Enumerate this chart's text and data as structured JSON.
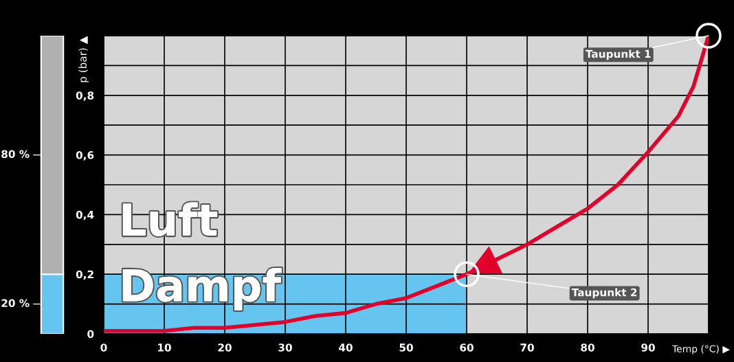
{
  "chart_data": [
    {
      "type": "line",
      "xlabel": "Temp (°C) ▶",
      "ylabel": "p (bar) ▲",
      "xlim": [
        0,
        100
      ],
      "ylim": [
        0,
        1.0
      ],
      "xticks": [
        0,
        10,
        20,
        30,
        40,
        50,
        60,
        70,
        80,
        90,
        {
          "value": 100,
          "label": null
        }
      ],
      "yticks": [
        0,
        {
          "value": 0.1,
          "label": null
        },
        {
          "value": 0.2,
          "label": "0,2"
        },
        {
          "value": 0.3,
          "label": null
        },
        {
          "value": 0.4,
          "label": "0,4"
        },
        {
          "value": 0.5,
          "label": null
        },
        {
          "value": 0.6,
          "label": "0,6"
        },
        {
          "value": 0.7,
          "label": null
        },
        {
          "value": 0.8,
          "label": "0,8"
        },
        {
          "value": 0.9,
          "label": null
        },
        {
          "value": 1.0,
          "label": null
        }
      ],
      "grid": true,
      "series": [
        {
          "type": "area",
          "color": "#66c5ee",
          "x": [
            0,
            60
          ],
          "values": [
            0.2,
            0.2
          ]
        },
        {
          "type": "line",
          "color": "#e0002a",
          "x": [
            0,
            5,
            10,
            15,
            20,
            25,
            30,
            35,
            40,
            45,
            50,
            55,
            60,
            65,
            70,
            75,
            80,
            85,
            90,
            95,
            97.5,
            100
          ],
          "values": [
            0.01,
            0.01,
            0.01,
            0.02,
            0.02,
            0.03,
            0.04,
            0.06,
            0.07,
            0.1,
            0.12,
            0.16,
            0.2,
            0.25,
            0.3,
            0.36,
            0.42,
            0.5,
            0.61,
            0.73,
            0.83,
            1.0
          ]
        },
        {
          "type": "scatter",
          "color": "#ffffff",
          "marker": "circle",
          "x": [
            60,
            100
          ],
          "values": [
            0.2,
            1.0
          ]
        }
      ],
      "annotations": [
        {
          "text": "Taupunkt 1",
          "x": 100,
          "y": 1.0
        },
        {
          "text": "Taupunkt 2",
          "x": 60,
          "y": 0.2
        },
        "Luft",
        "Dampf"
      ]
    },
    {
      "type": "bar",
      "stacked": true,
      "categories": [
        null
      ],
      "ylim": [
        0,
        100
      ],
      "series": [
        {
          "color": "#66c5ee",
          "values": [
            20
          ],
          "value_labels": [
            "20 %"
          ]
        },
        {
          "color": "#b0b0b0",
          "values": [
            80
          ],
          "value_labels": [
            "80 %"
          ]
        }
      ]
    }
  ]
}
